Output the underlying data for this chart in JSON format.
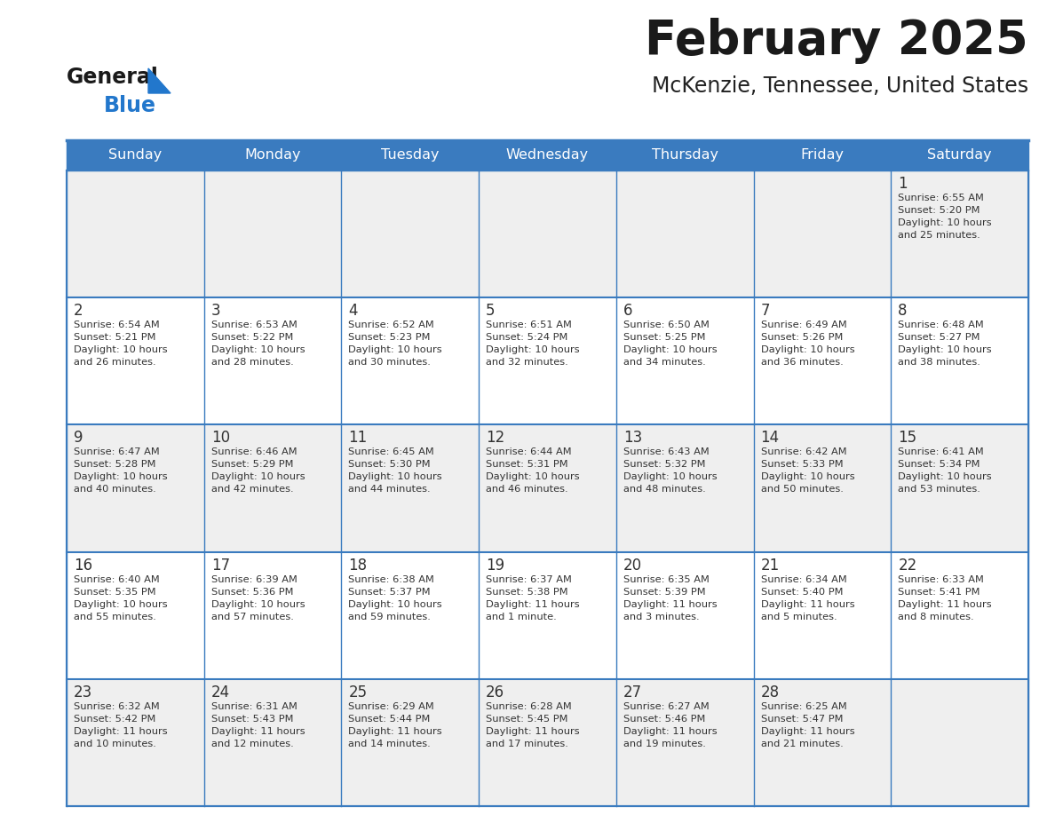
{
  "title": "February 2025",
  "subtitle": "McKenzie, Tennessee, United States",
  "header_color": "#3a7bbf",
  "header_text_color": "#ffffff",
  "day_names": [
    "Sunday",
    "Monday",
    "Tuesday",
    "Wednesday",
    "Thursday",
    "Friday",
    "Saturday"
  ],
  "background_color": "#ffffff",
  "cell_alt_color": "#efefef",
  "grid_color": "#3a7bbf",
  "title_color": "#1a1a1a",
  "subtitle_color": "#222222",
  "day_num_color": "#333333",
  "cell_text_color": "#333333",
  "logo_general_color": "#1a1a1a",
  "logo_blue_color": "#2277cc",
  "weeks": [
    [
      {
        "day": null,
        "sunrise": null,
        "sunset": null,
        "daylight": null
      },
      {
        "day": null,
        "sunrise": null,
        "sunset": null,
        "daylight": null
      },
      {
        "day": null,
        "sunrise": null,
        "sunset": null,
        "daylight": null
      },
      {
        "day": null,
        "sunrise": null,
        "sunset": null,
        "daylight": null
      },
      {
        "day": null,
        "sunrise": null,
        "sunset": null,
        "daylight": null
      },
      {
        "day": null,
        "sunrise": null,
        "sunset": null,
        "daylight": null
      },
      {
        "day": 1,
        "sunrise": "6:55 AM",
        "sunset": "5:20 PM",
        "daylight": "10 hours\nand 25 minutes."
      }
    ],
    [
      {
        "day": 2,
        "sunrise": "6:54 AM",
        "sunset": "5:21 PM",
        "daylight": "10 hours\nand 26 minutes."
      },
      {
        "day": 3,
        "sunrise": "6:53 AM",
        "sunset": "5:22 PM",
        "daylight": "10 hours\nand 28 minutes."
      },
      {
        "day": 4,
        "sunrise": "6:52 AM",
        "sunset": "5:23 PM",
        "daylight": "10 hours\nand 30 minutes."
      },
      {
        "day": 5,
        "sunrise": "6:51 AM",
        "sunset": "5:24 PM",
        "daylight": "10 hours\nand 32 minutes."
      },
      {
        "day": 6,
        "sunrise": "6:50 AM",
        "sunset": "5:25 PM",
        "daylight": "10 hours\nand 34 minutes."
      },
      {
        "day": 7,
        "sunrise": "6:49 AM",
        "sunset": "5:26 PM",
        "daylight": "10 hours\nand 36 minutes."
      },
      {
        "day": 8,
        "sunrise": "6:48 AM",
        "sunset": "5:27 PM",
        "daylight": "10 hours\nand 38 minutes."
      }
    ],
    [
      {
        "day": 9,
        "sunrise": "6:47 AM",
        "sunset": "5:28 PM",
        "daylight": "10 hours\nand 40 minutes."
      },
      {
        "day": 10,
        "sunrise": "6:46 AM",
        "sunset": "5:29 PM",
        "daylight": "10 hours\nand 42 minutes."
      },
      {
        "day": 11,
        "sunrise": "6:45 AM",
        "sunset": "5:30 PM",
        "daylight": "10 hours\nand 44 minutes."
      },
      {
        "day": 12,
        "sunrise": "6:44 AM",
        "sunset": "5:31 PM",
        "daylight": "10 hours\nand 46 minutes."
      },
      {
        "day": 13,
        "sunrise": "6:43 AM",
        "sunset": "5:32 PM",
        "daylight": "10 hours\nand 48 minutes."
      },
      {
        "day": 14,
        "sunrise": "6:42 AM",
        "sunset": "5:33 PM",
        "daylight": "10 hours\nand 50 minutes."
      },
      {
        "day": 15,
        "sunrise": "6:41 AM",
        "sunset": "5:34 PM",
        "daylight": "10 hours\nand 53 minutes."
      }
    ],
    [
      {
        "day": 16,
        "sunrise": "6:40 AM",
        "sunset": "5:35 PM",
        "daylight": "10 hours\nand 55 minutes."
      },
      {
        "day": 17,
        "sunrise": "6:39 AM",
        "sunset": "5:36 PM",
        "daylight": "10 hours\nand 57 minutes."
      },
      {
        "day": 18,
        "sunrise": "6:38 AM",
        "sunset": "5:37 PM",
        "daylight": "10 hours\nand 59 minutes."
      },
      {
        "day": 19,
        "sunrise": "6:37 AM",
        "sunset": "5:38 PM",
        "daylight": "11 hours\nand 1 minute."
      },
      {
        "day": 20,
        "sunrise": "6:35 AM",
        "sunset": "5:39 PM",
        "daylight": "11 hours\nand 3 minutes."
      },
      {
        "day": 21,
        "sunrise": "6:34 AM",
        "sunset": "5:40 PM",
        "daylight": "11 hours\nand 5 minutes."
      },
      {
        "day": 22,
        "sunrise": "6:33 AM",
        "sunset": "5:41 PM",
        "daylight": "11 hours\nand 8 minutes."
      }
    ],
    [
      {
        "day": 23,
        "sunrise": "6:32 AM",
        "sunset": "5:42 PM",
        "daylight": "11 hours\nand 10 minutes."
      },
      {
        "day": 24,
        "sunrise": "6:31 AM",
        "sunset": "5:43 PM",
        "daylight": "11 hours\nand 12 minutes."
      },
      {
        "day": 25,
        "sunrise": "6:29 AM",
        "sunset": "5:44 PM",
        "daylight": "11 hours\nand 14 minutes."
      },
      {
        "day": 26,
        "sunrise": "6:28 AM",
        "sunset": "5:45 PM",
        "daylight": "11 hours\nand 17 minutes."
      },
      {
        "day": 27,
        "sunrise": "6:27 AM",
        "sunset": "5:46 PM",
        "daylight": "11 hours\nand 19 minutes."
      },
      {
        "day": 28,
        "sunrise": "6:25 AM",
        "sunset": "5:47 PM",
        "daylight": "11 hours\nand 21 minutes."
      },
      {
        "day": null,
        "sunrise": null,
        "sunset": null,
        "daylight": null
      }
    ]
  ]
}
